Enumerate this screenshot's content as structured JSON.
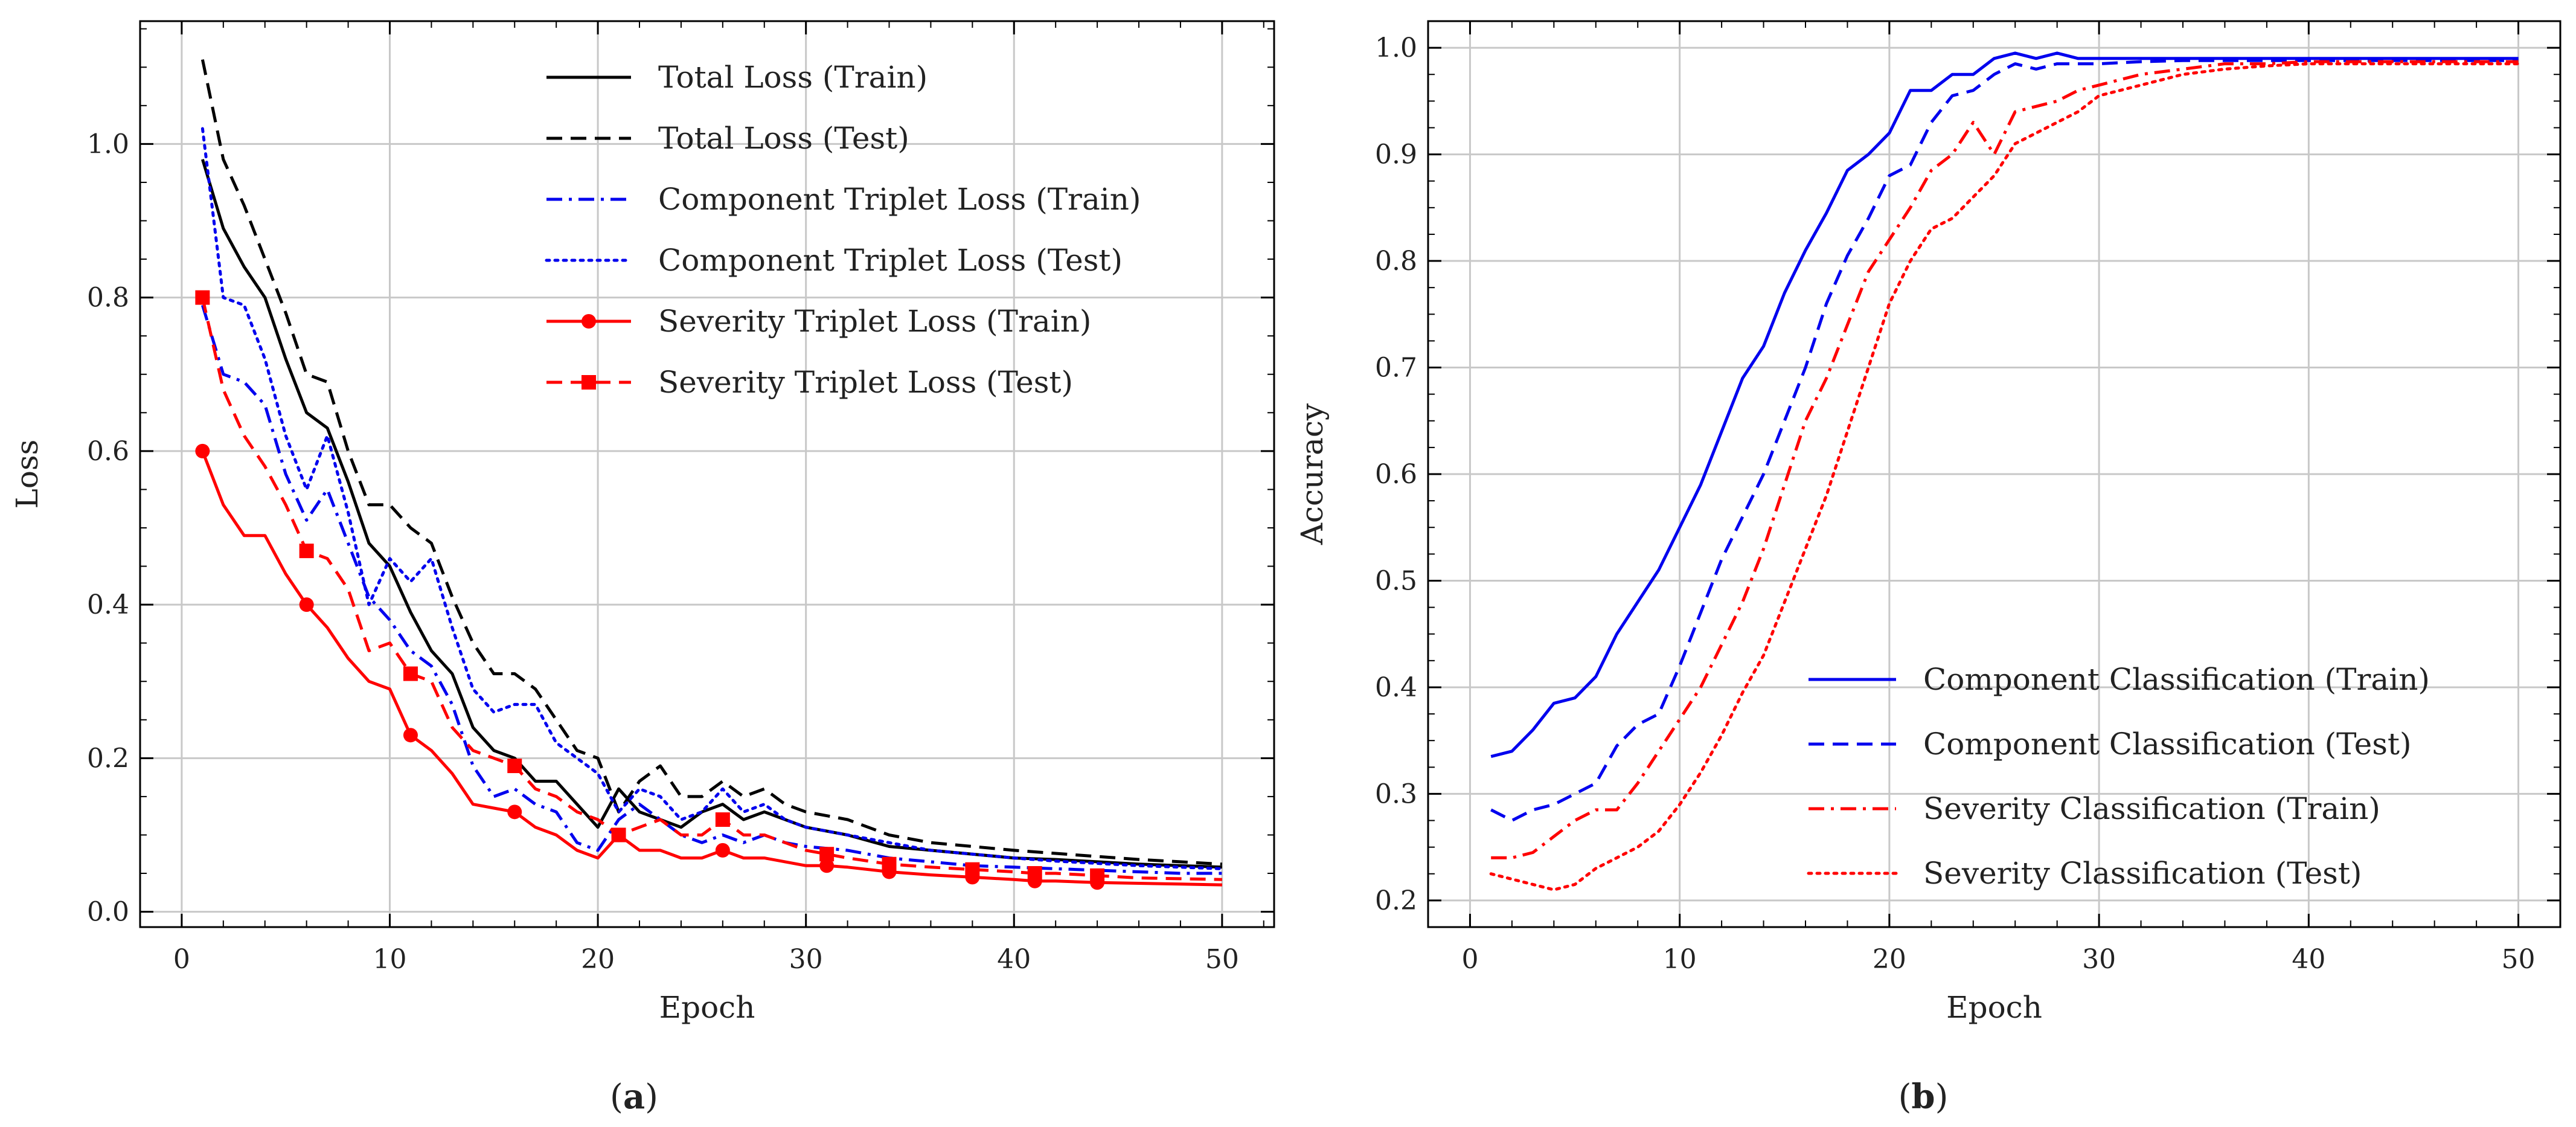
{
  "chart_data": [
    {
      "panel": "a",
      "caption_prefix": "(",
      "caption_letter": "a",
      "caption_suffix": ")",
      "type": "line",
      "title": "",
      "xlabel": "Epoch",
      "ylabel": "Loss",
      "xlim": [
        -2,
        52.5
      ],
      "ylim": [
        -0.02,
        1.16
      ],
      "xticks": [
        0,
        10,
        20,
        30,
        40,
        50
      ],
      "yticks": [
        0.0,
        0.2,
        0.4,
        0.6,
        0.8,
        1.0
      ],
      "xtick_labels": [
        "0",
        "10",
        "20",
        "30",
        "40",
        "50"
      ],
      "ytick_labels": [
        "0.0",
        "0.2",
        "0.4",
        "0.6",
        "0.8",
        "1.0"
      ],
      "grid": true,
      "legend_position": "top-right",
      "series": [
        {
          "name": "Total Loss (Train)",
          "color": "#000000",
          "dash": "solid",
          "marker": "none",
          "x": [
            1,
            2,
            3,
            4,
            5,
            6,
            7,
            8,
            9,
            10,
            11,
            12,
            13,
            14,
            15,
            16,
            17,
            18,
            19,
            20,
            21,
            22,
            23,
            24,
            25,
            26,
            27,
            28,
            29,
            30,
            32,
            34,
            36,
            38,
            40,
            42,
            44,
            46,
            48,
            50
          ],
          "y": [
            0.98,
            0.89,
            0.84,
            0.8,
            0.72,
            0.65,
            0.63,
            0.56,
            0.48,
            0.45,
            0.39,
            0.34,
            0.31,
            0.24,
            0.21,
            0.2,
            0.17,
            0.17,
            0.14,
            0.11,
            0.16,
            0.13,
            0.12,
            0.11,
            0.13,
            0.14,
            0.12,
            0.13,
            0.12,
            0.11,
            0.1,
            0.085,
            0.08,
            0.075,
            0.07,
            0.068,
            0.065,
            0.062,
            0.06,
            0.058
          ]
        },
        {
          "name": "Total Loss (Test)",
          "color": "#000000",
          "dash": "dashed",
          "marker": "none",
          "x": [
            1,
            2,
            3,
            4,
            5,
            6,
            7,
            8,
            9,
            10,
            11,
            12,
            13,
            14,
            15,
            16,
            17,
            18,
            19,
            20,
            21,
            22,
            23,
            24,
            25,
            26,
            27,
            28,
            29,
            30,
            32,
            34,
            36,
            38,
            40,
            42,
            44,
            46,
            48,
            50
          ],
          "y": [
            1.11,
            0.98,
            0.92,
            0.85,
            0.78,
            0.7,
            0.69,
            0.6,
            0.53,
            0.53,
            0.5,
            0.48,
            0.41,
            0.35,
            0.31,
            0.31,
            0.29,
            0.25,
            0.21,
            0.2,
            0.13,
            0.17,
            0.19,
            0.15,
            0.15,
            0.17,
            0.15,
            0.16,
            0.14,
            0.13,
            0.12,
            0.1,
            0.09,
            0.085,
            0.08,
            0.076,
            0.072,
            0.068,
            0.065,
            0.062
          ]
        },
        {
          "name": "Component Triplet Loss (Train)",
          "color": "#0000ee",
          "dash": "dashdot",
          "marker": "none",
          "x": [
            1,
            2,
            3,
            4,
            5,
            6,
            7,
            8,
            9,
            10,
            11,
            12,
            13,
            14,
            15,
            16,
            17,
            18,
            19,
            20,
            21,
            22,
            23,
            24,
            25,
            26,
            27,
            28,
            29,
            30,
            32,
            34,
            36,
            38,
            40,
            42,
            44,
            46,
            48,
            50
          ],
          "y": [
            0.79,
            0.7,
            0.69,
            0.66,
            0.57,
            0.51,
            0.55,
            0.48,
            0.41,
            0.38,
            0.34,
            0.32,
            0.27,
            0.19,
            0.15,
            0.16,
            0.14,
            0.13,
            0.09,
            0.08,
            0.12,
            0.14,
            0.12,
            0.1,
            0.09,
            0.1,
            0.09,
            0.1,
            0.09,
            0.085,
            0.08,
            0.07,
            0.065,
            0.06,
            0.058,
            0.056,
            0.054,
            0.052,
            0.05,
            0.05
          ]
        },
        {
          "name": "Component Triplet Loss (Test)",
          "color": "#0000ee",
          "dash": "dotted",
          "marker": "none",
          "x": [
            1,
            2,
            3,
            4,
            5,
            6,
            7,
            8,
            9,
            10,
            11,
            12,
            13,
            14,
            15,
            16,
            17,
            18,
            19,
            20,
            21,
            22,
            23,
            24,
            25,
            26,
            27,
            28,
            29,
            30,
            32,
            34,
            36,
            38,
            40,
            42,
            44,
            46,
            48,
            50
          ],
          "y": [
            1.02,
            0.8,
            0.79,
            0.72,
            0.62,
            0.55,
            0.62,
            0.52,
            0.4,
            0.46,
            0.43,
            0.46,
            0.37,
            0.29,
            0.26,
            0.27,
            0.27,
            0.22,
            0.2,
            0.18,
            0.13,
            0.16,
            0.15,
            0.12,
            0.13,
            0.16,
            0.13,
            0.14,
            0.12,
            0.11,
            0.1,
            0.09,
            0.08,
            0.075,
            0.07,
            0.066,
            0.063,
            0.06,
            0.058,
            0.056
          ]
        },
        {
          "name": "Severity Triplet Loss (Train)",
          "color": "#ff0000",
          "dash": "solid",
          "marker": "circle",
          "marker_indices": [
            0,
            5,
            10,
            15,
            20,
            25,
            30,
            32,
            34,
            36,
            38
          ],
          "x": [
            1,
            2,
            3,
            4,
            5,
            6,
            7,
            8,
            9,
            10,
            11,
            12,
            13,
            14,
            15,
            16,
            17,
            18,
            19,
            20,
            21,
            22,
            23,
            24,
            25,
            26,
            27,
            28,
            29,
            30,
            31,
            32,
            34,
            36,
            38,
            40,
            41,
            42,
            44,
            46,
            48,
            50
          ],
          "y": [
            0.6,
            0.53,
            0.49,
            0.49,
            0.44,
            0.4,
            0.37,
            0.33,
            0.3,
            0.29,
            0.23,
            0.21,
            0.18,
            0.14,
            0.135,
            0.13,
            0.11,
            0.1,
            0.08,
            0.07,
            0.1,
            0.08,
            0.08,
            0.07,
            0.07,
            0.08,
            0.07,
            0.07,
            0.065,
            0.06,
            0.06,
            0.058,
            0.052,
            0.048,
            0.045,
            0.042,
            0.04,
            0.04,
            0.038,
            0.037,
            0.036,
            0.035
          ]
        },
        {
          "name": "Severity Triplet Loss (Test)",
          "color": "#ff0000",
          "dash": "dashed",
          "marker": "square",
          "marker_indices": [
            0,
            5,
            10,
            15,
            20,
            25,
            30,
            32,
            34,
            36,
            38
          ],
          "x": [
            1,
            2,
            3,
            4,
            5,
            6,
            7,
            8,
            9,
            10,
            11,
            12,
            13,
            14,
            15,
            16,
            17,
            18,
            19,
            20,
            21,
            22,
            23,
            24,
            25,
            26,
            27,
            28,
            29,
            30,
            31,
            32,
            34,
            36,
            38,
            40,
            41,
            42,
            44,
            46,
            48,
            50
          ],
          "y": [
            0.8,
            0.68,
            0.62,
            0.58,
            0.53,
            0.47,
            0.46,
            0.42,
            0.34,
            0.35,
            0.31,
            0.3,
            0.24,
            0.21,
            0.2,
            0.19,
            0.16,
            0.15,
            0.13,
            0.12,
            0.1,
            0.11,
            0.12,
            0.1,
            0.1,
            0.12,
            0.1,
            0.1,
            0.09,
            0.08,
            0.075,
            0.07,
            0.062,
            0.058,
            0.055,
            0.052,
            0.05,
            0.05,
            0.047,
            0.044,
            0.043,
            0.042
          ]
        }
      ]
    },
    {
      "panel": "b",
      "caption_prefix": "(",
      "caption_letter": "b",
      "caption_suffix": ")",
      "type": "line",
      "title": "",
      "xlabel": "Epoch",
      "ylabel": "Accuracy",
      "xlim": [
        -2,
        52
      ],
      "ylim": [
        0.175,
        1.025
      ],
      "xticks": [
        0,
        10,
        20,
        30,
        40,
        50
      ],
      "yticks": [
        0.2,
        0.3,
        0.4,
        0.5,
        0.6,
        0.7,
        0.8,
        0.9,
        1.0
      ],
      "xtick_labels": [
        "0",
        "10",
        "20",
        "30",
        "40",
        "50"
      ],
      "ytick_labels": [
        "0.2",
        "0.3",
        "0.4",
        "0.5",
        "0.6",
        "0.7",
        "0.8",
        "0.9",
        "1.0"
      ],
      "grid": true,
      "legend_position": "bottom-right",
      "series": [
        {
          "name": "Component Classification (Train)",
          "color": "#0000ee",
          "dash": "solid",
          "marker": "none",
          "x": [
            1,
            2,
            3,
            4,
            5,
            6,
            7,
            8,
            9,
            10,
            11,
            12,
            13,
            14,
            15,
            16,
            17,
            18,
            19,
            20,
            21,
            22,
            23,
            24,
            25,
            26,
            27,
            28,
            29,
            30,
            32,
            34,
            36,
            38,
            40,
            42,
            44,
            46,
            48,
            50
          ],
          "y": [
            0.335,
            0.34,
            0.36,
            0.385,
            0.39,
            0.41,
            0.45,
            0.48,
            0.51,
            0.55,
            0.59,
            0.64,
            0.69,
            0.72,
            0.77,
            0.81,
            0.845,
            0.885,
            0.9,
            0.92,
            0.96,
            0.96,
            0.975,
            0.975,
            0.99,
            0.995,
            0.99,
            0.995,
            0.99,
            0.99,
            0.99,
            0.99,
            0.99,
            0.99,
            0.99,
            0.99,
            0.99,
            0.99,
            0.99,
            0.99
          ]
        },
        {
          "name": "Component Classification (Test)",
          "color": "#0000ee",
          "dash": "dashed",
          "marker": "none",
          "x": [
            1,
            2,
            3,
            4,
            5,
            6,
            7,
            8,
            9,
            10,
            11,
            12,
            13,
            14,
            15,
            16,
            17,
            18,
            19,
            20,
            21,
            22,
            23,
            24,
            25,
            26,
            27,
            28,
            29,
            30,
            32,
            34,
            36,
            38,
            40,
            42,
            44,
            46,
            48,
            50
          ],
          "y": [
            0.285,
            0.275,
            0.285,
            0.29,
            0.3,
            0.31,
            0.345,
            0.365,
            0.375,
            0.42,
            0.47,
            0.52,
            0.56,
            0.6,
            0.65,
            0.7,
            0.76,
            0.805,
            0.84,
            0.88,
            0.89,
            0.93,
            0.955,
            0.96,
            0.975,
            0.985,
            0.98,
            0.985,
            0.985,
            0.985,
            0.987,
            0.988,
            0.988,
            0.988,
            0.988,
            0.988,
            0.988,
            0.988,
            0.988,
            0.988
          ]
        },
        {
          "name": "Severity Classification (Train)",
          "color": "#ff0000",
          "dash": "dashdot",
          "marker": "none",
          "x": [
            1,
            2,
            3,
            4,
            5,
            6,
            7,
            8,
            9,
            10,
            11,
            12,
            13,
            14,
            15,
            16,
            17,
            18,
            19,
            20,
            21,
            22,
            23,
            24,
            25,
            26,
            27,
            28,
            29,
            30,
            32,
            34,
            36,
            38,
            40,
            42,
            44,
            46,
            48,
            50
          ],
          "y": [
            0.24,
            0.24,
            0.245,
            0.26,
            0.275,
            0.285,
            0.285,
            0.31,
            0.34,
            0.37,
            0.4,
            0.44,
            0.48,
            0.53,
            0.59,
            0.65,
            0.69,
            0.74,
            0.79,
            0.82,
            0.85,
            0.885,
            0.9,
            0.93,
            0.9,
            0.94,
            0.945,
            0.95,
            0.96,
            0.965,
            0.975,
            0.98,
            0.985,
            0.985,
            0.987,
            0.987,
            0.987,
            0.987,
            0.987,
            0.987
          ]
        },
        {
          "name": "Severity Classification (Test)",
          "color": "#ff0000",
          "dash": "dotted",
          "marker": "none",
          "x": [
            1,
            2,
            3,
            4,
            5,
            6,
            7,
            8,
            9,
            10,
            11,
            12,
            13,
            14,
            15,
            16,
            17,
            18,
            19,
            20,
            21,
            22,
            23,
            24,
            25,
            26,
            27,
            28,
            29,
            30,
            32,
            34,
            36,
            38,
            40,
            42,
            44,
            46,
            48,
            50
          ],
          "y": [
            0.225,
            0.22,
            0.215,
            0.21,
            0.215,
            0.23,
            0.24,
            0.25,
            0.265,
            0.29,
            0.32,
            0.355,
            0.395,
            0.43,
            0.48,
            0.53,
            0.58,
            0.64,
            0.7,
            0.76,
            0.8,
            0.83,
            0.84,
            0.86,
            0.88,
            0.91,
            0.92,
            0.93,
            0.94,
            0.955,
            0.965,
            0.975,
            0.98,
            0.983,
            0.985,
            0.985,
            0.985,
            0.985,
            0.985,
            0.985
          ]
        }
      ]
    }
  ]
}
